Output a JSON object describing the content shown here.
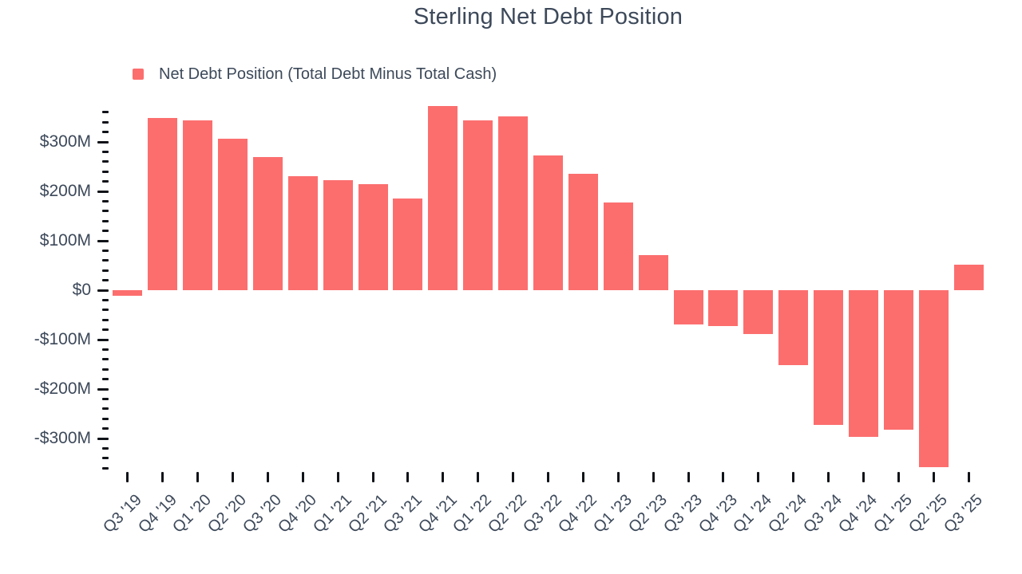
{
  "chart": {
    "background": "#ffffff",
    "colors": {
      "bar": "#fc6e6e",
      "text": "#3d495a",
      "tick": "#101318"
    }
  },
  "chart_data": {
    "type": "bar",
    "title": "Sterling Net Debt Position",
    "legend_label": "Net Debt Position (Total Debt Minus Total Cash)",
    "legend_position": "top-left",
    "grid": false,
    "unit": "$M",
    "categories": [
      "Q3 '19",
      "Q4 '19",
      "Q1 '20",
      "Q2 '20",
      "Q3 '20",
      "Q4 '20",
      "Q1 '21",
      "Q2 '21",
      "Q3 '21",
      "Q4 '21",
      "Q1 '22",
      "Q2 '22",
      "Q3 '22",
      "Q4 '22",
      "Q1 '23",
      "Q2 '23",
      "Q3 '23",
      "Q4 '23",
      "Q1 '24",
      "Q2 '24",
      "Q3 '24",
      "Q4 '24",
      "Q1 '25",
      "Q2 '25",
      "Q3 '25"
    ],
    "values": [
      -12,
      349,
      344,
      307,
      269,
      231,
      222,
      214,
      185,
      372,
      343,
      351,
      272,
      235,
      178,
      71,
      -70,
      -73,
      -89,
      -152,
      -272,
      -296,
      -283,
      -358,
      52
    ],
    "ylim": [
      -368,
      385
    ],
    "y_axis": {
      "tick_min": -360,
      "tick_max": 360,
      "minor_step": 20,
      "major_step": 100,
      "major_ticks": [
        {
          "value": 300,
          "label": "$300M"
        },
        {
          "value": 200,
          "label": "$200M"
        },
        {
          "value": 100,
          "label": "$100M"
        },
        {
          "value": 0,
          "label": "$0"
        },
        {
          "value": -100,
          "label": "-$100M"
        },
        {
          "value": -200,
          "label": "-$200M"
        },
        {
          "value": -300,
          "label": "-$300M"
        }
      ]
    }
  }
}
